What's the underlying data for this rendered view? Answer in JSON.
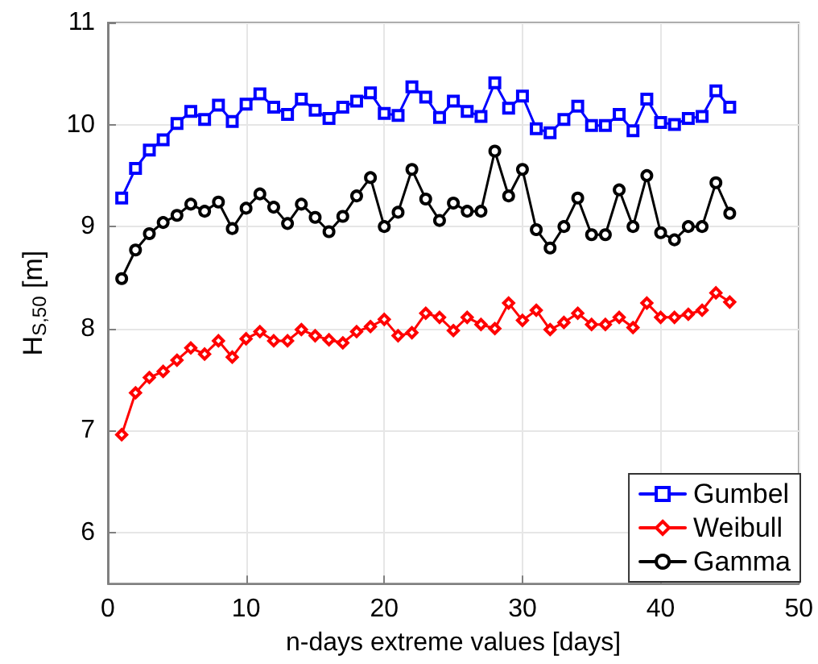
{
  "chart_data": {
    "type": "line",
    "xlabel": "n-days extreme values [days]",
    "ylabel": "H$_{S,50}$ [m]",
    "x": [
      1,
      2,
      3,
      4,
      5,
      6,
      7,
      8,
      9,
      10,
      11,
      12,
      13,
      14,
      15,
      16,
      17,
      18,
      19,
      20,
      21,
      22,
      23,
      24,
      25,
      26,
      27,
      28,
      29,
      30,
      31,
      32,
      33,
      34,
      35,
      36,
      37,
      38,
      39,
      40,
      41,
      42,
      43,
      44,
      45
    ],
    "series": [
      {
        "name": "Gumbel",
        "color": "#0000ff",
        "marker": "square",
        "values": [
          9.28,
          9.57,
          9.75,
          9.85,
          10.01,
          10.13,
          10.05,
          10.19,
          10.03,
          10.2,
          10.3,
          10.17,
          10.1,
          10.25,
          10.14,
          10.06,
          10.17,
          10.23,
          10.31,
          10.11,
          10.09,
          10.37,
          10.27,
          10.07,
          10.23,
          10.13,
          10.08,
          10.41,
          10.16,
          10.28,
          9.96,
          9.92,
          10.05,
          10.18,
          9.99,
          9.99,
          10.1,
          9.94,
          10.25,
          10.02,
          10.0,
          10.06,
          10.08,
          10.33,
          10.17
        ]
      },
      {
        "name": "Weibull",
        "color": "#ff0000",
        "marker": "diamond",
        "values": [
          6.96,
          7.37,
          7.52,
          7.58,
          7.69,
          7.81,
          7.75,
          7.88,
          7.72,
          7.9,
          7.97,
          7.88,
          7.88,
          7.99,
          7.93,
          7.89,
          7.86,
          7.97,
          8.02,
          8.09,
          7.93,
          7.96,
          8.15,
          8.11,
          7.98,
          8.11,
          8.04,
          8.0,
          8.25,
          8.08,
          8.18,
          7.99,
          8.06,
          8.15,
          8.04,
          8.04,
          8.11,
          8.01,
          8.25,
          8.11,
          8.11,
          8.14,
          8.18,
          8.35,
          8.26
        ]
      },
      {
        "name": "Gamma",
        "color": "#000000",
        "marker": "circle",
        "values": [
          8.49,
          8.77,
          8.93,
          9.04,
          9.11,
          9.22,
          9.15,
          9.24,
          8.98,
          9.18,
          9.32,
          9.19,
          9.03,
          9.22,
          9.09,
          8.95,
          9.1,
          9.3,
          9.48,
          9.0,
          9.14,
          9.56,
          9.27,
          9.06,
          9.23,
          9.15,
          9.15,
          9.74,
          9.3,
          9.56,
          8.97,
          8.79,
          9.0,
          9.28,
          8.92,
          8.92,
          9.36,
          9.0,
          9.5,
          8.94,
          8.87,
          9.0,
          9.0,
          9.43,
          9.13
        ]
      }
    ],
    "xlim": [
      0,
      50
    ],
    "xticks": [
      0,
      10,
      20,
      30,
      40,
      50
    ],
    "ylim": [
      5.5,
      11
    ],
    "yticks": [
      6,
      7,
      8,
      9,
      10,
      11
    ],
    "grid": true,
    "legend": "bottom right",
    "line_style": "solid"
  }
}
